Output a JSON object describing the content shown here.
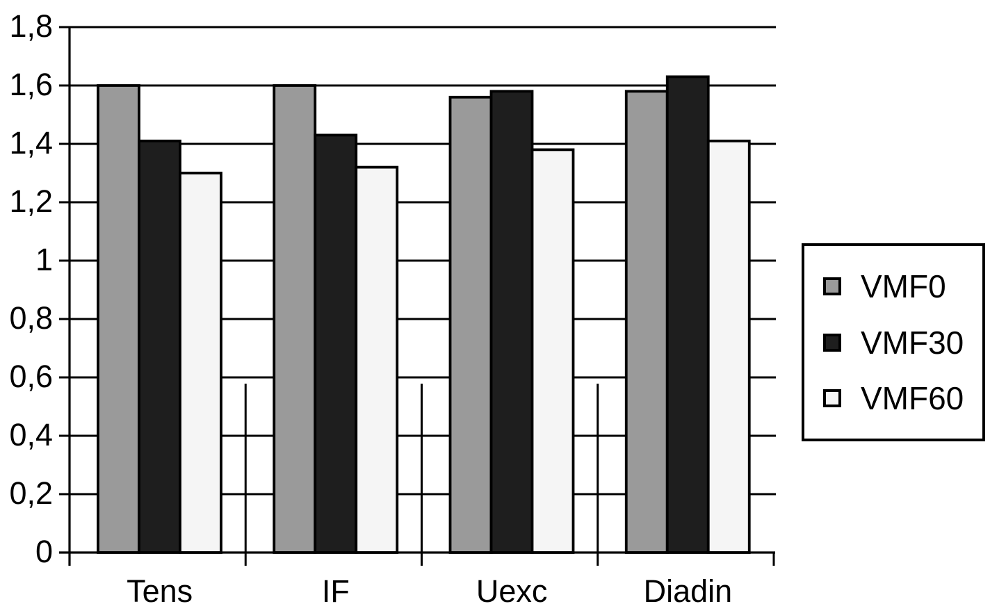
{
  "chart_data": {
    "type": "bar",
    "categories": [
      "Tens",
      "IF",
      "Uexc",
      "Diadin"
    ],
    "series": [
      {
        "name": "VMF0",
        "color": "#9a9a9a",
        "values": [
          1.6,
          1.6,
          1.56,
          1.58
        ]
      },
      {
        "name": "VMF30",
        "color": "#1e1e1e",
        "values": [
          1.41,
          1.43,
          1.58,
          1.63
        ]
      },
      {
        "name": "VMF60",
        "color": "#f5f5f5",
        "values": [
          1.3,
          1.32,
          1.38,
          1.41
        ]
      }
    ],
    "ylim": [
      0,
      1.8
    ],
    "ytick_step": 0.2,
    "ytick_labels": [
      "0",
      "0,2",
      "0,4",
      "0,6",
      "0,8",
      "1",
      "1,2",
      "1,4",
      "1,6",
      "1,8"
    ],
    "decimal_separator": ",",
    "grid": true,
    "legend_position": "right",
    "bar_border_color": "#000000",
    "grid_color": "#000000",
    "text_color": "#000000",
    "background_color": "#ffffff"
  }
}
